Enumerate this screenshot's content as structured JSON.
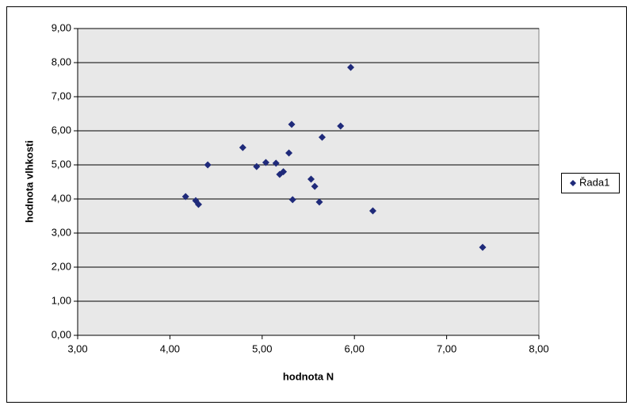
{
  "chart_data": {
    "type": "scatter",
    "x_label": "hodnota N",
    "y_label": "hodnota vlhkosti",
    "series": [
      {
        "name": "Řada1",
        "color": "#1f2a7a",
        "x": [
          4.17,
          4.28,
          4.31,
          4.41,
          4.79,
          4.94,
          5.04,
          5.15,
          5.19,
          5.23,
          5.29,
          5.32,
          5.33,
          5.53,
          5.57,
          5.62,
          5.65,
          5.85,
          5.96,
          6.2,
          7.39
        ],
        "values": [
          4.07,
          3.95,
          3.84,
          5.0,
          5.51,
          4.95,
          5.07,
          5.05,
          4.72,
          4.8,
          5.35,
          6.19,
          3.98,
          4.58,
          4.37,
          3.91,
          5.81,
          6.14,
          7.86,
          3.65,
          2.58
        ]
      }
    ],
    "xlim": [
      3,
      8
    ],
    "xticks": [
      {
        "value": 3,
        "label": "3,00"
      },
      {
        "value": 4,
        "label": "4,00"
      },
      {
        "value": 5,
        "label": "5,00"
      },
      {
        "value": 6,
        "label": "6,00"
      },
      {
        "value": 7,
        "label": "7,00"
      },
      {
        "value": 8,
        "label": "8,00"
      }
    ],
    "ylim": [
      0,
      9
    ],
    "yticks": [
      {
        "value": 0,
        "label": "0,00"
      },
      {
        "value": 1,
        "label": "1,00"
      },
      {
        "value": 2,
        "label": "2,00"
      },
      {
        "value": 3,
        "label": "3,00"
      },
      {
        "value": 4,
        "label": "4,00"
      },
      {
        "value": 5,
        "label": "5,00"
      },
      {
        "value": 6,
        "label": "6,00"
      },
      {
        "value": 7,
        "label": "7,00"
      },
      {
        "value": 8,
        "label": "8,00"
      },
      {
        "value": 9,
        "label": "9,00"
      }
    ],
    "grid": true,
    "legend": "right"
  }
}
